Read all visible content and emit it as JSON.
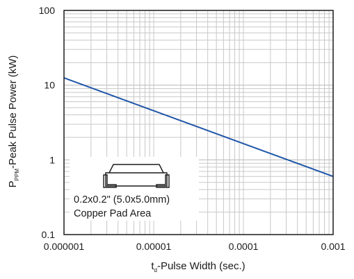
{
  "chart_data": {
    "type": "line",
    "x_scale": "log",
    "y_scale": "log",
    "xlim": [
      1e-06,
      0.001
    ],
    "ylim": [
      0.1,
      100
    ],
    "x_ticks": [
      "0.000001",
      "0.00001",
      "0.0001",
      "0.001"
    ],
    "y_ticks": [
      "0.1",
      "1",
      "10",
      "100"
    ],
    "xlabel": {
      "main": "t",
      "sub": "d",
      "rest": "-Pulse Width (sec.)"
    },
    "ylabel": {
      "main": "P",
      "sub": "PPM",
      "rest": "-Peak Pulse Power (kW)"
    },
    "grid": true,
    "series": [
      {
        "color": "#1f56a8",
        "points": [
          [
            1e-06,
            12.5
          ],
          [
            0.001,
            0.6
          ]
        ]
      }
    ],
    "annotation": {
      "line1": "0.2x0.2\" (5.0x5.0mm)",
      "line2": "Copper Pad Area",
      "icon": "smd-package-icon"
    }
  }
}
